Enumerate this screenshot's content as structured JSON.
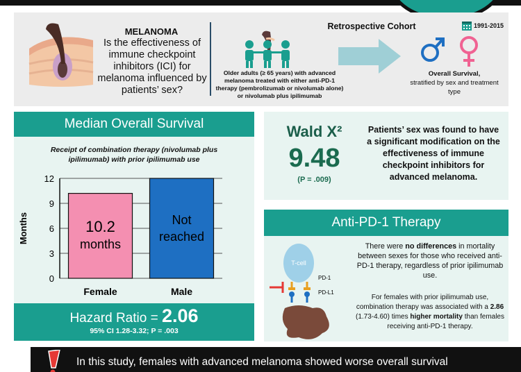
{
  "header": {
    "title": "MELANOMA",
    "question": "Is the effectiveness of immune checkpoint inhibitors (ICI) for melanoma influenced by patients’ sex?",
    "population": "Older adults (≥ 65 years) with advanced melanoma treated with either anti-PD-1 therapy (pembrolizumab or nivolumab alone) or nivolumab plus ipilimumab",
    "study_design": "Retrospective Cohort",
    "years": "1991-2015",
    "outcome_main": "Overall Survival,",
    "outcome_detail": "stratified by sex and treatment type"
  },
  "mos": {
    "title": "Median Overall Survival",
    "subtitle": "Receipt of combination therapy (nivolumab plus ipilimumab) with prior ipilimumab use",
    "hr_label": "Hazard Ratio =",
    "hr_value": "2.06",
    "ci_text": "95% CI 1.28-3.32;",
    "p_text": "P = .003"
  },
  "chart_data": {
    "type": "bar",
    "categories": [
      "Female",
      "Male"
    ],
    "values": [
      10.2,
      12
    ],
    "bar_labels": [
      [
        "10.2",
        "months"
      ],
      [
        "Not",
        "reached"
      ]
    ],
    "ylabel": "Months",
    "ylim": [
      0,
      12
    ],
    "yticks": [
      0,
      3,
      6,
      9,
      12
    ],
    "colors": [
      "#f48fb1",
      "#1e6fc2"
    ],
    "grid": true,
    "note": "Male bar drawn to top of axis; value shown as Not reached"
  },
  "wald": {
    "label": "Wald X²",
    "value": "9.48",
    "p": "(P = .009)",
    "text": "Patients’ sex was found to have a significant modification on the effectiveness of immune checkpoint inhibitors for advanced melanoma."
  },
  "antipd1": {
    "title": "Anti-PD-1 Therapy",
    "tcell_label": "T-cell",
    "pd1_label": "PD-1",
    "pdl1_label": "PD-L1",
    "text1_pre": "There were ",
    "text1_bold": "no differences",
    "text1_post": " in mortality between sexes for those who received anti-PD-1 therapy, regardless of prior ipilimumab use.",
    "text2_pre": "For females with prior ipilimumab use, combination therapy was associated with a ",
    "text2_bold_num": "2.86",
    "text2_ci": " (1.73-4.60) times ",
    "text2_bold": "higher mortality",
    "text2_post": " than females receiving anti-PD-1 therapy."
  },
  "conclusion": {
    "text": "In this study, females with advanced melanoma showed worse overall survival"
  },
  "colors": {
    "teal": "#1a9e8f",
    "panel": "#e8f4f1",
    "female": "#f48fb1",
    "male": "#1e6fc2",
    "wald_green": "#1b6b4f"
  },
  "icons": [
    "skin-hair-illustration",
    "people-icon",
    "arrow-right-icon",
    "calendar-icon",
    "male-symbol-icon",
    "female-symbol-icon",
    "tcell-illustration",
    "warning-icon"
  ]
}
